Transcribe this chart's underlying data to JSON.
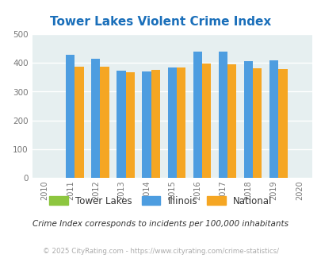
{
  "title": "Tower Lakes Violent Crime Index",
  "title_color": "#1a6fba",
  "years": [
    2011,
    2012,
    2013,
    2014,
    2015,
    2016,
    2017,
    2018,
    2019
  ],
  "tower_lakes": [
    0,
    0,
    0,
    0,
    0,
    0,
    0,
    0,
    0
  ],
  "illinois": [
    428,
    415,
    372,
    370,
    383,
    440,
    440,
    405,
    408
  ],
  "national": [
    387,
    387,
    368,
    376,
    383,
    397,
    394,
    381,
    379
  ],
  "illinois_color": "#4d9de0",
  "national_color": "#f5a623",
  "tower_lakes_color": "#8dc63f",
  "plot_bg": "#e6eff0",
  "ylim": [
    0,
    500
  ],
  "yticks": [
    0,
    100,
    200,
    300,
    400,
    500
  ],
  "xlim": [
    2009.5,
    2020.5
  ],
  "grid_color": "#ffffff",
  "bar_width": 0.35,
  "legend_labels": [
    "Tower Lakes",
    "Illinois",
    "National"
  ],
  "note": "Crime Index corresponds to incidents per 100,000 inhabitants",
  "note_color": "#333333",
  "copyright": "© 2025 CityRating.com - https://www.cityrating.com/crime-statistics/",
  "copyright_color": "#aaaaaa"
}
